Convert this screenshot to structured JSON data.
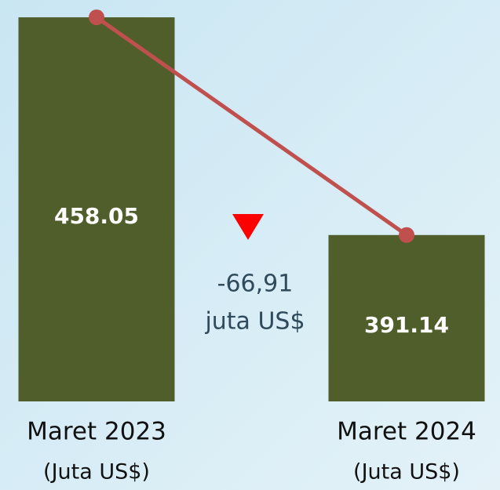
{
  "chart_data": {
    "type": "bar",
    "categories": [
      "Maret 2023",
      "Maret 2024"
    ],
    "category_units": [
      "(Juta US$)",
      "(Juta US$)"
    ],
    "values": [
      458.05,
      391.14
    ],
    "color": "#4f5e2a",
    "line_color": "#c0504d",
    "ylim": [
      340,
      460
    ],
    "annotations": [
      "-66,91",
      "juta US$"
    ],
    "annotation_marker_color": "#ff0000"
  }
}
